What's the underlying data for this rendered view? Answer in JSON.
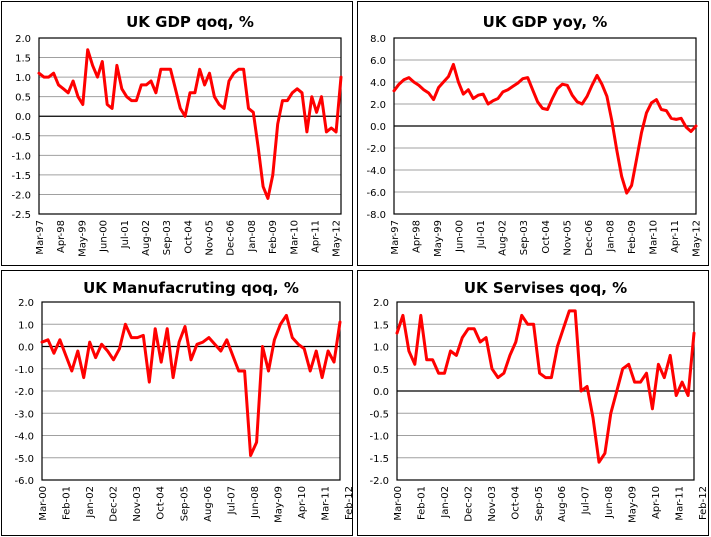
{
  "colors": {
    "series": "#ff0000",
    "grid": "#a0a0a0",
    "zero": "#000000",
    "frame": "#000000"
  },
  "chart_data": [
    {
      "type": "line",
      "title": "UK GDP qoq, %",
      "xlabel": "",
      "ylabel": "",
      "ylim": [
        -2.5,
        2.0
      ],
      "ystep": 0.5,
      "yticks": [
        "2.0",
        "1.5",
        "1.0",
        "0.5",
        "0.0",
        "-0.5",
        "-1.0",
        "-1.5",
        "-2.0",
        "-2.5"
      ],
      "xticks": [
        "Mar-97",
        "Apr-98",
        "May-99",
        "Jun-00",
        "Jul-01",
        "Aug-02",
        "Sep-03",
        "Oct-04",
        "Nov-05",
        "Dec-06",
        "Jan-08",
        "Feb-09",
        "Mar-10",
        "Apr-11",
        "May-12"
      ],
      "grid": true,
      "legend": "none",
      "series": [
        {
          "name": "UK GDP qoq",
          "values": [
            1.1,
            1.0,
            1.0,
            1.1,
            0.8,
            0.7,
            0.6,
            0.9,
            0.5,
            0.3,
            1.7,
            1.3,
            1.0,
            1.4,
            0.3,
            0.2,
            1.3,
            0.7,
            0.5,
            0.4,
            0.4,
            0.8,
            0.8,
            0.9,
            0.6,
            1.2,
            1.2,
            1.2,
            0.7,
            0.2,
            0.0,
            0.6,
            0.6,
            1.2,
            0.8,
            1.1,
            0.5,
            0.3,
            0.2,
            0.9,
            1.1,
            1.2,
            1.2,
            0.2,
            0.1,
            -0.8,
            -1.8,
            -2.1,
            -1.5,
            -0.2,
            0.4,
            0.4,
            0.6,
            0.7,
            0.6,
            -0.4,
            0.5,
            0.1,
            0.5,
            -0.4,
            -0.3,
            -0.4,
            1.0
          ]
        }
      ]
    },
    {
      "type": "line",
      "title": "UK GDP yoy, %",
      "xlabel": "",
      "ylabel": "",
      "ylim": [
        -8.0,
        8.0
      ],
      "ystep": 2.0,
      "yticks": [
        "8.0",
        "6.0",
        "4.0",
        "2.0",
        "0.0",
        "-2.0",
        "-4.0",
        "-6.0",
        "-8.0"
      ],
      "xticks": [
        "Mar-97",
        "Apr-98",
        "May-99",
        "Jun-00",
        "Jul-01",
        "Aug-02",
        "Sep-03",
        "Oct-04",
        "Nov-05",
        "Dec-06",
        "Jan-08",
        "Feb-09",
        "Mar-10",
        "Apr-11",
        "May-12"
      ],
      "grid": true,
      "legend": "none",
      "series": [
        {
          "name": "UK GDP yoy",
          "values": [
            3.2,
            3.8,
            4.2,
            4.4,
            4.0,
            3.7,
            3.3,
            3.0,
            2.4,
            3.5,
            4.0,
            4.5,
            5.6,
            4.0,
            2.9,
            3.3,
            2.5,
            2.8,
            2.9,
            2.0,
            2.3,
            2.5,
            3.1,
            3.3,
            3.6,
            3.9,
            4.3,
            4.4,
            3.3,
            2.2,
            1.6,
            1.5,
            2.5,
            3.4,
            3.8,
            3.7,
            2.8,
            2.2,
            2.0,
            2.7,
            3.7,
            4.6,
            3.8,
            2.7,
            0.5,
            -2.2,
            -4.6,
            -6.1,
            -5.4,
            -3.0,
            -0.6,
            1.2,
            2.1,
            2.4,
            1.5,
            1.4,
            0.7,
            0.6,
            0.7,
            -0.1,
            -0.5,
            0.0
          ]
        }
      ]
    },
    {
      "type": "line",
      "title": "UK Manufacruting qoq, %",
      "xlabel": "",
      "ylabel": "",
      "ylim": [
        -6.0,
        2.0
      ],
      "ystep": 1.0,
      "yticks": [
        "2.0",
        "1.0",
        "0.0",
        "-1.0",
        "-2.0",
        "-3.0",
        "-4.0",
        "-5.0",
        "-6.0"
      ],
      "xticks": [
        "Mar-00",
        "Feb-01",
        "Jan-02",
        "Dec-02",
        "Nov-03",
        "Oct-04",
        "Sep-05",
        "Aug-06",
        "Jul-07",
        "Jun-08",
        "May-09",
        "Apr-10",
        "Mar-11",
        "Feb-12"
      ],
      "grid": true,
      "legend": "none",
      "series": [
        {
          "name": "UK Manufacturing qoq",
          "values": [
            0.2,
            0.3,
            -0.3,
            0.3,
            -0.4,
            -1.1,
            -0.2,
            -1.4,
            0.2,
            -0.5,
            0.1,
            -0.2,
            -0.6,
            -0.1,
            1.0,
            0.4,
            0.4,
            0.5,
            -1.6,
            0.8,
            -0.7,
            0.8,
            -1.4,
            0.2,
            0.9,
            -0.6,
            0.1,
            0.2,
            0.4,
            0.1,
            -0.2,
            0.3,
            -0.4,
            -1.1,
            -1.1,
            -4.9,
            -4.3,
            0.0,
            -1.1,
            0.3,
            1.0,
            1.4,
            0.4,
            0.1,
            -0.1,
            -1.1,
            -0.2,
            -1.4,
            -0.2,
            -0.7,
            1.1
          ]
        }
      ]
    },
    {
      "type": "line",
      "title": "UK Servises qoq, %",
      "xlabel": "",
      "ylabel": "",
      "ylim": [
        -2.0,
        2.0
      ],
      "ystep": 0.5,
      "yticks": [
        "2.0",
        "1.5",
        "1.0",
        "0.5",
        "0.0",
        "-0.5",
        "-1.0",
        "-1.5",
        "-2.0"
      ],
      "xticks": [
        "Mar-00",
        "Feb-01",
        "Jan-02",
        "Dec-02",
        "Nov-03",
        "Oct-04",
        "Sep-05",
        "Aug-06",
        "Jul-07",
        "Jun-08",
        "May-09",
        "Apr-10",
        "Mar-11",
        "Feb-12"
      ],
      "grid": true,
      "legend": "none",
      "series": [
        {
          "name": "UK Services qoq",
          "values": [
            1.3,
            1.7,
            0.9,
            0.6,
            1.7,
            0.7,
            0.7,
            0.4,
            0.4,
            0.9,
            0.8,
            1.2,
            1.4,
            1.4,
            1.1,
            1.2,
            0.5,
            0.3,
            0.4,
            0.8,
            1.1,
            1.7,
            1.5,
            1.5,
            0.4,
            0.3,
            0.3,
            1.0,
            1.4,
            1.8,
            1.8,
            0.0,
            0.1,
            -0.6,
            -1.6,
            -1.4,
            -0.5,
            0.0,
            0.5,
            0.6,
            0.2,
            0.2,
            0.4,
            -0.4,
            0.6,
            0.3,
            0.8,
            -0.1,
            0.2,
            -0.1,
            1.3
          ]
        }
      ]
    }
  ]
}
